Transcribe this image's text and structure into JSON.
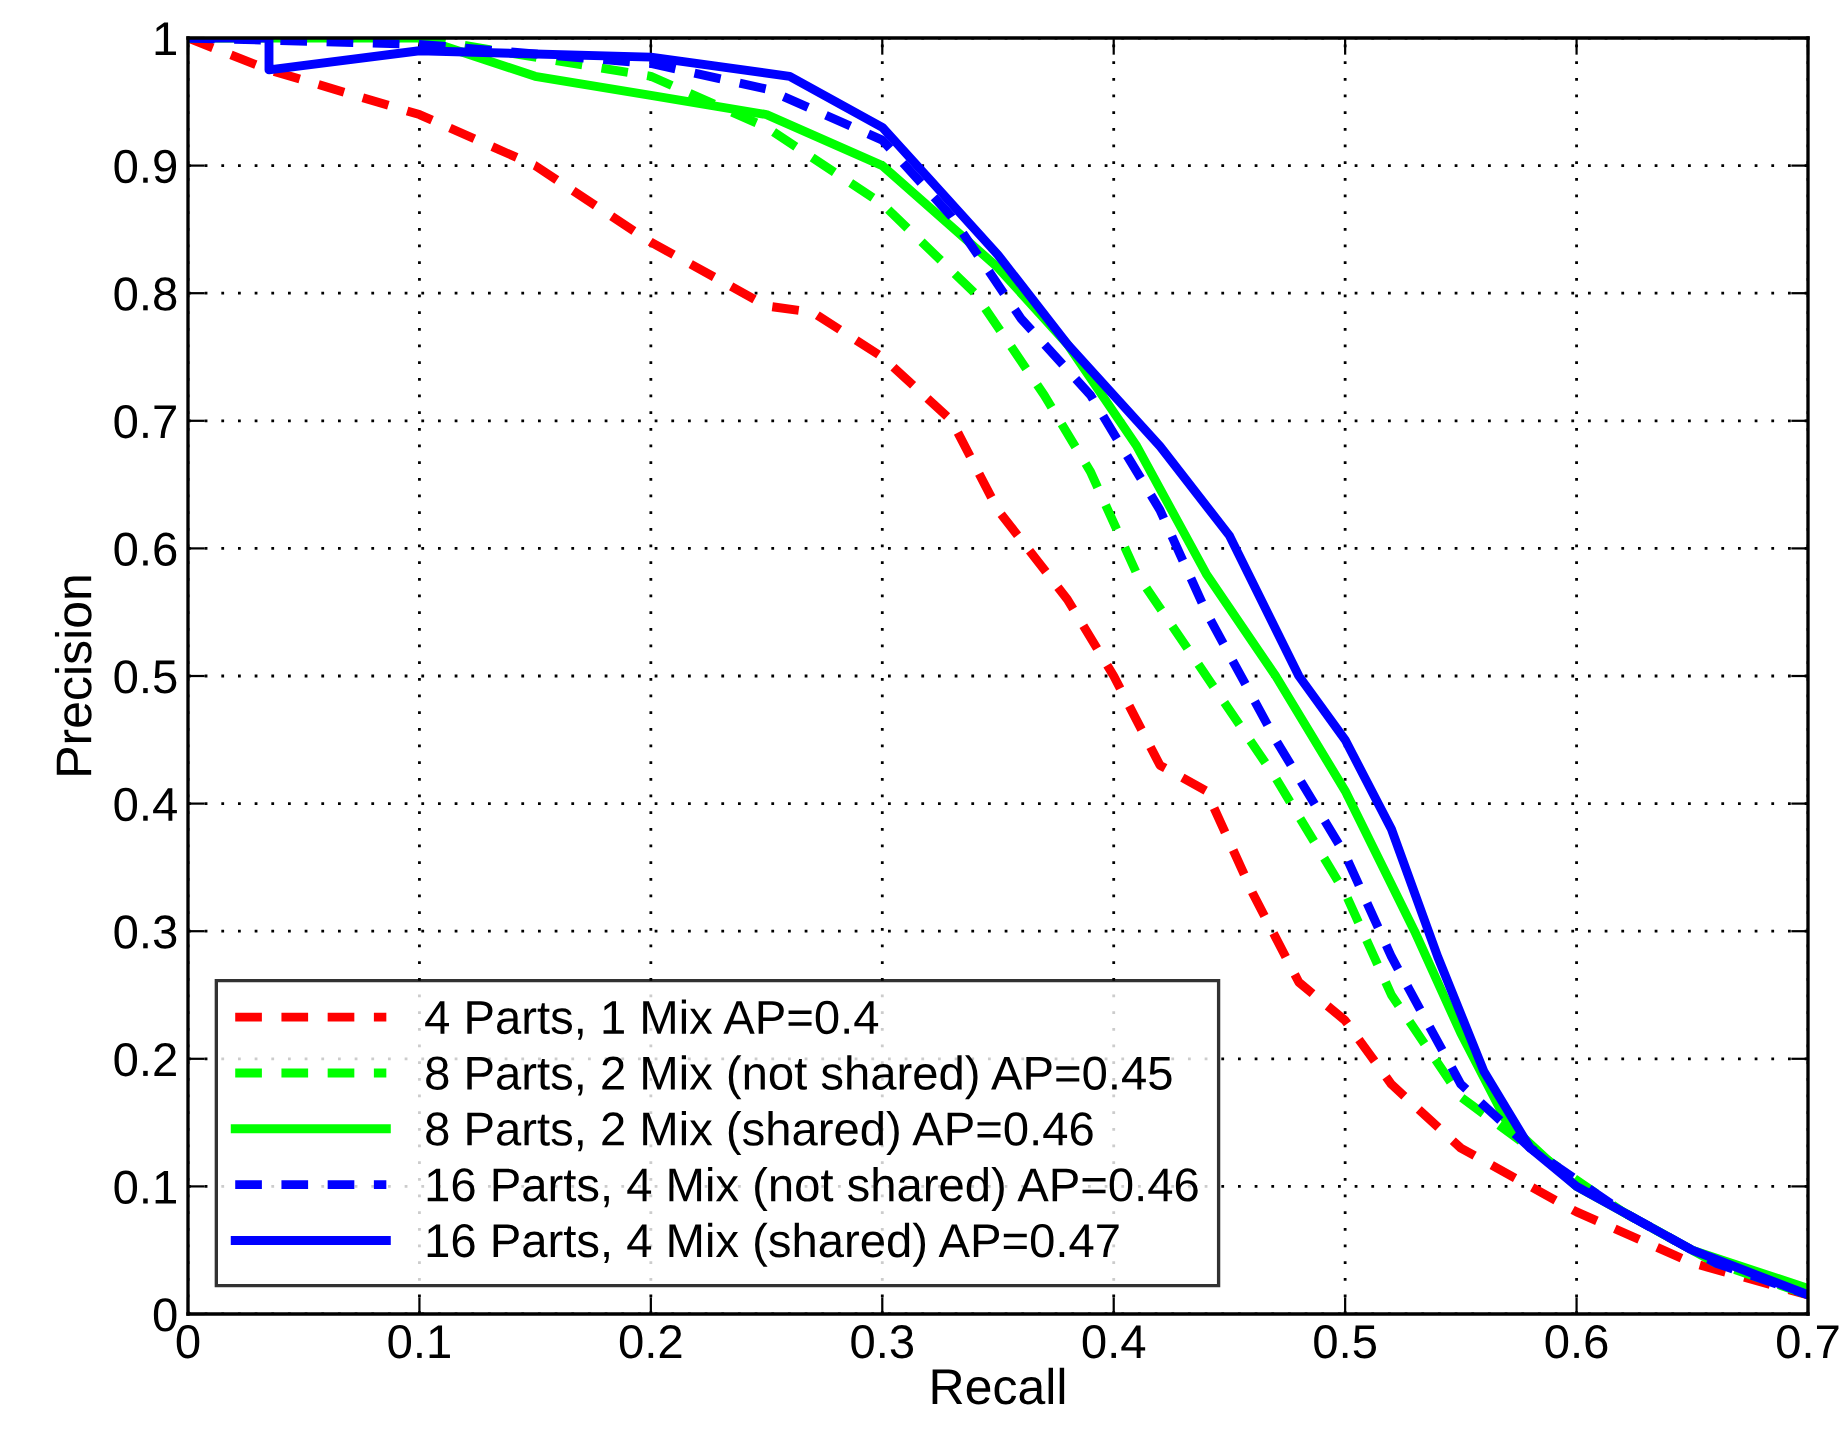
{
  "chart_data": {
    "type": "line",
    "xlabel": "Recall",
    "ylabel": "Precision",
    "xlim": [
      0,
      0.7
    ],
    "ylim": [
      0,
      1
    ],
    "xticks": [
      0,
      0.1,
      0.2,
      0.3,
      0.4,
      0.5,
      0.6,
      0.7
    ],
    "yticks": [
      0,
      0.1,
      0.2,
      0.3,
      0.4,
      0.5,
      0.6,
      0.7,
      0.8,
      0.9,
      1
    ],
    "grid": true,
    "legend": "bottom left",
    "marker": "none",
    "series": [
      {
        "name": "4 Parts, 1 Mix AP=0.4",
        "color": "#ff0000",
        "line_style": "dashed",
        "x": [
          0,
          0.035,
          0.1,
          0.15,
          0.2,
          0.25,
          0.27,
          0.3,
          0.33,
          0.35,
          0.38,
          0.4,
          0.42,
          0.44,
          0.46,
          0.48,
          0.5,
          0.52,
          0.55,
          0.6,
          0.65,
          0.7
        ],
        "values": [
          1,
          0.975,
          0.94,
          0.9,
          0.84,
          0.79,
          0.785,
          0.75,
          0.7,
          0.63,
          0.56,
          0.5,
          0.43,
          0.41,
          0.33,
          0.26,
          0.23,
          0.18,
          0.13,
          0.08,
          0.04,
          0.015
        ]
      },
      {
        "name": "8 Parts, 2 Mix (not shared) AP=0.45",
        "color": "#00ff00",
        "line_style": "dashed",
        "x": [
          0,
          0.1,
          0.2,
          0.25,
          0.3,
          0.34,
          0.37,
          0.39,
          0.41,
          0.44,
          0.47,
          0.5,
          0.52,
          0.55,
          0.58,
          0.62,
          0.66,
          0.7
        ],
        "values": [
          1,
          1,
          0.97,
          0.93,
          0.87,
          0.8,
          0.72,
          0.66,
          0.58,
          0.5,
          0.42,
          0.33,
          0.25,
          0.17,
          0.13,
          0.08,
          0.04,
          0.015
        ]
      },
      {
        "name": "8 Parts, 2 Mix (shared) AP=0.46",
        "color": "#00ff00",
        "line_style": "solid",
        "x": [
          0,
          0.1,
          0.15,
          0.2,
          0.25,
          0.3,
          0.35,
          0.38,
          0.41,
          0.44,
          0.47,
          0.5,
          0.53,
          0.55,
          0.57,
          0.6,
          0.65,
          0.7
        ],
        "values": [
          1,
          1,
          0.97,
          0.955,
          0.94,
          0.9,
          0.82,
          0.76,
          0.68,
          0.58,
          0.5,
          0.41,
          0.3,
          0.22,
          0.15,
          0.1,
          0.05,
          0.02
        ]
      },
      {
        "name": "16 Parts, 4 Mix (not shared) AP=0.46",
        "color": "#0000ff",
        "line_style": "dashed",
        "x": [
          0,
          0.1,
          0.2,
          0.25,
          0.3,
          0.33,
          0.36,
          0.39,
          0.42,
          0.44,
          0.47,
          0.5,
          0.52,
          0.55,
          0.58,
          0.62,
          0.66,
          0.7
        ],
        "values": [
          1,
          0.995,
          0.98,
          0.96,
          0.92,
          0.86,
          0.78,
          0.72,
          0.63,
          0.55,
          0.45,
          0.36,
          0.28,
          0.18,
          0.13,
          0.08,
          0.04,
          0.015
        ]
      },
      {
        "name": "16 Parts, 4 Mix (shared) AP=0.47",
        "color": "#0000ff",
        "line_style": "solid",
        "x": [
          0,
          0.035,
          0.035,
          0.1,
          0.2,
          0.26,
          0.3,
          0.32,
          0.35,
          0.38,
          0.42,
          0.45,
          0.48,
          0.5,
          0.52,
          0.54,
          0.56,
          0.58,
          0.6,
          0.65,
          0.7
        ],
        "values": [
          1,
          1,
          0.975,
          0.99,
          0.985,
          0.97,
          0.93,
          0.89,
          0.83,
          0.76,
          0.68,
          0.61,
          0.5,
          0.45,
          0.38,
          0.28,
          0.19,
          0.13,
          0.1,
          0.05,
          0.015
        ]
      }
    ]
  }
}
